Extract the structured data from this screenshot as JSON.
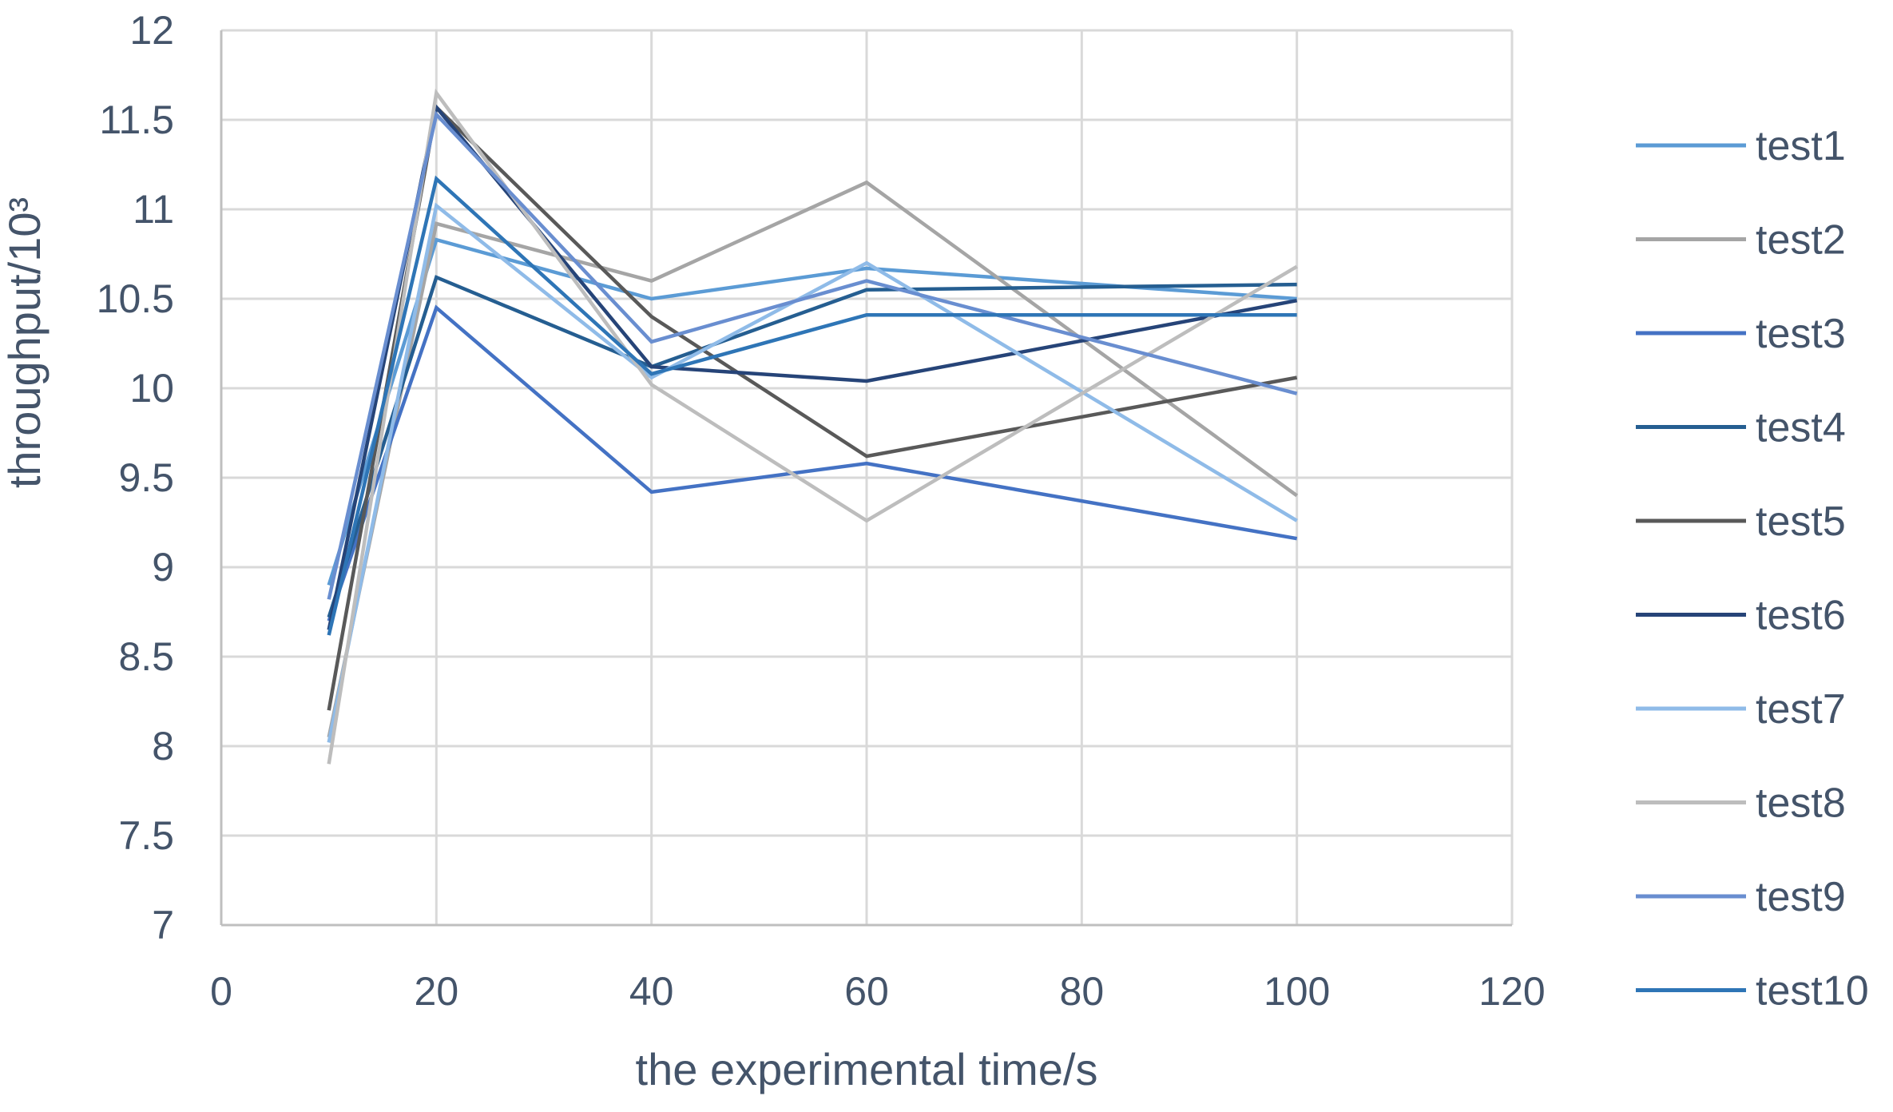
{
  "chart_data": {
    "type": "line",
    "title": "",
    "xlabel": "the experimental time/s",
    "ylabel": "throughput/10³",
    "xlim": [
      0,
      120
    ],
    "ylim": [
      7,
      12
    ],
    "xticks": [
      0,
      20,
      40,
      60,
      80,
      100,
      120
    ],
    "yticks": [
      7,
      7.5,
      8,
      8.5,
      9,
      9.5,
      10,
      10.5,
      11,
      11.5,
      12
    ],
    "x": [
      10,
      20,
      40,
      60,
      100
    ],
    "grid": true,
    "legend_position": "right",
    "series": [
      {
        "name": "test1",
        "color": "#5b9bd5",
        "values": [
          8.9,
          10.83,
          10.5,
          10.67,
          10.5
        ]
      },
      {
        "name": "test2",
        "color": "#a5a5a5",
        "values": [
          8.05,
          10.92,
          10.6,
          11.15,
          9.4
        ]
      },
      {
        "name": "test3",
        "color": "#4472c4",
        "values": [
          8.7,
          10.45,
          9.42,
          9.58,
          9.16
        ]
      },
      {
        "name": "test4",
        "color": "#255e91",
        "values": [
          8.72,
          10.62,
          10.12,
          10.55,
          10.58
        ]
      },
      {
        "name": "test5",
        "color": "#595959",
        "values": [
          8.2,
          11.57,
          10.4,
          9.62,
          10.06
        ]
      },
      {
        "name": "test6",
        "color": "#264478",
        "values": [
          8.65,
          11.57,
          10.12,
          10.04,
          10.49
        ]
      },
      {
        "name": "test7",
        "color": "#8fbbe8",
        "values": [
          8.02,
          11.02,
          10.06,
          10.7,
          9.26
        ]
      },
      {
        "name": "test8",
        "color": "#bdbdbd",
        "values": [
          7.9,
          11.65,
          10.02,
          9.26,
          10.68
        ]
      },
      {
        "name": "test9",
        "color": "#698ed0",
        "values": [
          8.82,
          11.53,
          10.26,
          10.6,
          9.97
        ]
      },
      {
        "name": "test10",
        "color": "#2e75b6",
        "values": [
          8.62,
          11.17,
          10.08,
          10.41,
          10.41
        ]
      }
    ]
  }
}
